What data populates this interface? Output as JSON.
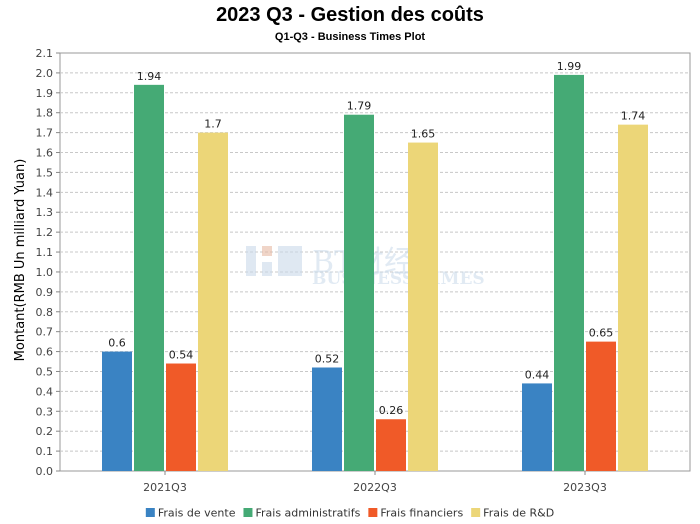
{
  "chart_data": {
    "type": "bar",
    "title": "2023 Q3 - Gestion des coûts",
    "subtitle": "Q1-Q3 - Business Times Plot",
    "xlabel": "",
    "ylabel": "Montant(RMB Un milliard Yuan)",
    "ylim": [
      0,
      2.1
    ],
    "ytick_step": 0.1,
    "grid": true,
    "legend_position": "bottom",
    "categories": [
      "2021Q3",
      "2022Q3",
      "2023Q3"
    ],
    "series": [
      {
        "name": "Frais de vente",
        "color": "#3a83c3",
        "values": [
          0.6,
          0.52,
          0.44
        ]
      },
      {
        "name": "Frais administratifs",
        "color": "#45aa75",
        "values": [
          1.94,
          1.79,
          1.99
        ]
      },
      {
        "name": "Frais financiers",
        "color": "#f05a28",
        "values": [
          0.54,
          0.26,
          0.65
        ]
      },
      {
        "name": "Frais de R&D",
        "color": "#ecd678",
        "values": [
          1.7,
          1.65,
          1.74
        ]
      }
    ],
    "watermark": {
      "mark": "BT财经",
      "sub": "BUSINESS TIMES"
    }
  }
}
